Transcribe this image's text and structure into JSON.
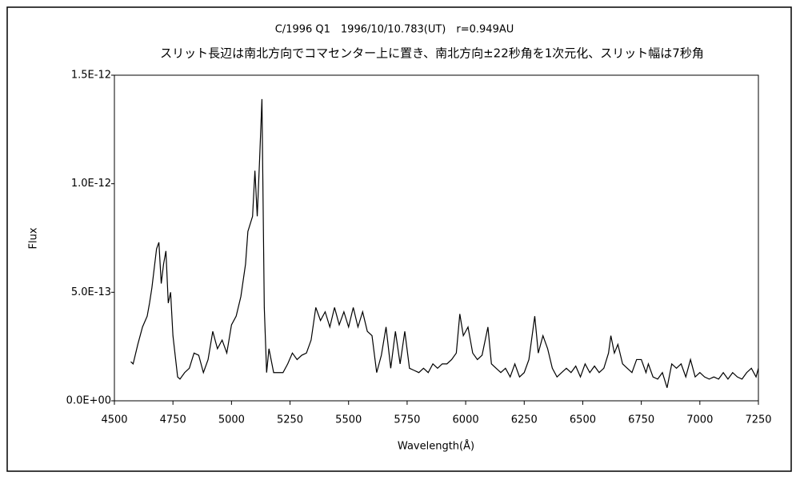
{
  "chart_data": {
    "type": "line",
    "title": "C/1996 Q1　1996/10/10.783(UT)　r=0.949AU",
    "subtitle": "スリット長辺は南北方向でコマセンター上に置き、南北方向±22秒角を1次元化、スリット幅は7秒角",
    "x_label": "Wavelength(Å)",
    "y_label": "Flux",
    "color": "#000000",
    "x": [
      4570,
      4580,
      4600,
      4620,
      4640,
      4650,
      4660,
      4680,
      4690,
      4700,
      4710,
      4720,
      4730,
      4740,
      4750,
      4770,
      4780,
      4800,
      4820,
      4840,
      4860,
      4880,
      4900,
      4920,
      4940,
      4960,
      4980,
      5000,
      5020,
      5040,
      5060,
      5070,
      5090,
      5100,
      5110,
      5120,
      5130,
      5140,
      5150,
      5160,
      5180,
      5200,
      5220,
      5240,
      5260,
      5280,
      5300,
      5320,
      5340,
      5360,
      5380,
      5400,
      5420,
      5440,
      5460,
      5480,
      5500,
      5520,
      5540,
      5560,
      5580,
      5600,
      5620,
      5640,
      5660,
      5680,
      5700,
      5720,
      5740,
      5760,
      5780,
      5800,
      5820,
      5840,
      5860,
      5880,
      5900,
      5920,
      5940,
      5960,
      5975,
      5990,
      6010,
      6030,
      6050,
      6070,
      6095,
      6110,
      6130,
      6150,
      6170,
      6190,
      6210,
      6230,
      6250,
      6270,
      6295,
      6310,
      6330,
      6350,
      6370,
      6390,
      6410,
      6430,
      6450,
      6470,
      6490,
      6510,
      6530,
      6550,
      6570,
      6590,
      6610,
      6620,
      6635,
      6650,
      6670,
      6690,
      6710,
      6730,
      6750,
      6770,
      6780,
      6800,
      6820,
      6840,
      6860,
      6880,
      6900,
      6920,
      6940,
      6960,
      6980,
      7000,
      7020,
      7040,
      7060,
      7080,
      7100,
      7120,
      7140,
      7160,
      7180,
      7200,
      7220,
      7240,
      7250
    ],
    "values": [
      1.8e-13,
      1.7e-13,
      2.6e-13,
      3.4e-13,
      3.9e-13,
      4.5e-13,
      5.2e-13,
      7e-13,
      7.3e-13,
      5.4e-13,
      6.3e-13,
      6.9e-13,
      4.5e-13,
      5e-13,
      3e-13,
      1.1e-13,
      1e-13,
      1.3e-13,
      1.5e-13,
      2.2e-13,
      2.1e-13,
      1.3e-13,
      1.9e-13,
      3.2e-13,
      2.4e-13,
      2.8e-13,
      2.2e-13,
      3.5e-13,
      3.9e-13,
      4.8e-13,
      6.3e-13,
      7.8e-13,
      8.5e-13,
      1.06e-12,
      8.5e-13,
      1.11e-12,
      1.39e-12,
      4.3e-13,
      1.3e-13,
      2.4e-13,
      1.3e-13,
      1.3e-13,
      1.3e-13,
      1.7e-13,
      2.2e-13,
      1.9e-13,
      2.1e-13,
      2.2e-13,
      2.8e-13,
      4.3e-13,
      3.7e-13,
      4.1e-13,
      3.4e-13,
      4.3e-13,
      3.5e-13,
      4.1e-13,
      3.4e-13,
      4.3e-13,
      3.4e-13,
      4.1e-13,
      3.2e-13,
      3e-13,
      1.3e-13,
      2.1e-13,
      3.4e-13,
      1.5e-13,
      3.2e-13,
      1.7e-13,
      3.2e-13,
      1.5e-13,
      1.4e-13,
      1.3e-13,
      1.5e-13,
      1.3e-13,
      1.7e-13,
      1.5e-13,
      1.7e-13,
      1.7e-13,
      1.9e-13,
      2.2e-13,
      4e-13,
      3e-13,
      3.4e-13,
      2.2e-13,
      1.9e-13,
      2.1e-13,
      3.4e-13,
      1.7e-13,
      1.5e-13,
      1.3e-13,
      1.5e-13,
      1.1e-13,
      1.7e-13,
      1.1e-13,
      1.3e-13,
      1.9e-13,
      3.9e-13,
      2.2e-13,
      3e-13,
      2.4e-13,
      1.5e-13,
      1.1e-13,
      1.3e-13,
      1.5e-13,
      1.3e-13,
      1.6e-13,
      1.1e-13,
      1.7e-13,
      1.3e-13,
      1.6e-13,
      1.3e-13,
      1.5e-13,
      2.2e-13,
      3e-13,
      2.2e-13,
      2.6e-13,
      1.7e-13,
      1.5e-13,
      1.3e-13,
      1.9e-13,
      1.9e-13,
      1.3e-13,
      1.7e-13,
      1.1e-13,
      1e-13,
      1.3e-13,
      6e-14,
      1.7e-13,
      1.5e-13,
      1.7e-13,
      1.1e-13,
      1.9e-13,
      1.1e-13,
      1.3e-13,
      1.1e-13,
      1e-13,
      1.1e-13,
      1e-13,
      1.3e-13,
      1e-13,
      1.3e-13,
      1.1e-13,
      1e-13,
      1.3e-13,
      1.5e-13,
      1.1e-13,
      1.5e-13
    ],
    "xlim": [
      4500,
      7250
    ],
    "xticks": [
      4500,
      4750,
      5000,
      5250,
      5500,
      5750,
      6000,
      6250,
      6500,
      6750,
      7000,
      7250
    ],
    "ylim": [
      0,
      1.5e-12
    ],
    "yticks": [
      {
        "value": 0,
        "label": "0.0E+00"
      },
      {
        "value": 5e-13,
        "label": "5.0E-13"
      },
      {
        "value": 1e-12,
        "label": "1.0E-12"
      },
      {
        "value": 1.5e-12,
        "label": "1.5E-12"
      }
    ],
    "grid": false
  }
}
